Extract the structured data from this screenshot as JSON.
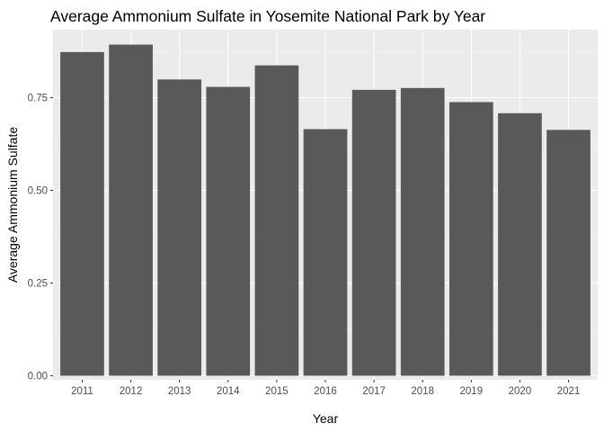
{
  "chart_data": {
    "type": "bar",
    "title": "Average Ammonium Sulfate in Yosemite National Park by Year",
    "xlabel": "Year",
    "ylabel": "Average Ammonium Sulfate",
    "categories": [
      "2011",
      "2012",
      "2013",
      "2014",
      "2015",
      "2016",
      "2017",
      "2018",
      "2019",
      "2020",
      "2021"
    ],
    "values": [
      0.873,
      0.893,
      0.799,
      0.779,
      0.837,
      0.665,
      0.771,
      0.776,
      0.738,
      0.708,
      0.663
    ],
    "y_ticks": [
      "0.00",
      "0.25",
      "0.50",
      "0.75"
    ],
    "ylim": [
      0,
      0.93
    ],
    "grid": true,
    "colors": {
      "panel_background": "#ebebeb",
      "grid_major": "#ffffff",
      "grid_minor": "#f5f5f5",
      "bar_fill": "#595959",
      "tick_label": "#4d4d4d",
      "tick_mark": "#333333"
    }
  }
}
